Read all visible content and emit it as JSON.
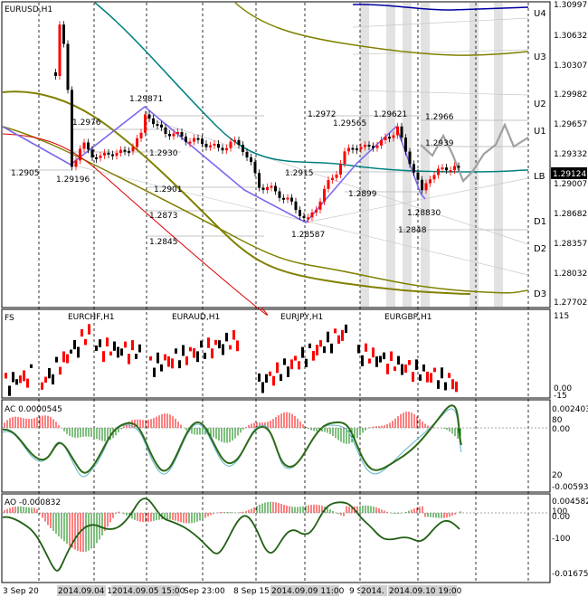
{
  "main": {
    "title": "EURUSD,H1",
    "current_price": "1.29124",
    "price_axis": [
      "1.30997",
      "1.30632",
      "1.30307",
      "1.29982",
      "1.29657",
      "1.29332",
      "1.29007",
      "1.28682",
      "1.28357",
      "1.28032",
      "1.27702"
    ],
    "levels": [
      "U4",
      "U3",
      "U2",
      "U1",
      "LB",
      "D1",
      "D2",
      "D3"
    ],
    "price_labels": [
      "1.29871",
      "1.29196",
      "1.2976",
      "1.2930",
      "1.2905",
      "1.2901",
      "1.2873",
      "1.2845",
      "1.2972",
      "1.29565",
      "1.29621",
      "1.2966",
      "1.2939",
      "1.2915",
      "1.2899",
      "1.28587",
      "1.28830",
      "1.2848"
    ]
  },
  "fx_panel": {
    "title": "FS",
    "symbols": [
      "EURCHF,H1",
      "EURAUD,H1",
      "EURJPY,H1",
      "EURGBP,H1"
    ],
    "axis": [
      "115",
      "0.00",
      "-15"
    ]
  },
  "ac_panel": {
    "title": "AC 0.0000545",
    "axis": [
      "0.002403",
      "80",
      "0.00",
      "20",
      "-0.005937"
    ]
  },
  "ao_panel": {
    "title": "AO -0.000832",
    "axis": [
      "0.004582",
      "100",
      "0.00",
      "-100",
      "-0.016756"
    ]
  },
  "time_axis": [
    "3 Sep 20",
    "2014.09.04 18:00",
    "2014.09.05 15:00",
    "Sep 23:00",
    "8 Sep 15:",
    "2014.09.09 11:00",
    "9 S",
    "2014.",
    "2014.09.10 19:00"
  ],
  "colors": {
    "bull": "#ff0000",
    "bear": "#000000",
    "zigzag": "#7b68ee",
    "teal": "#008080",
    "olive": "#808000",
    "navy": "#0000a0",
    "ac_up": "#ff0000",
    "ac_down": "#008000"
  }
}
